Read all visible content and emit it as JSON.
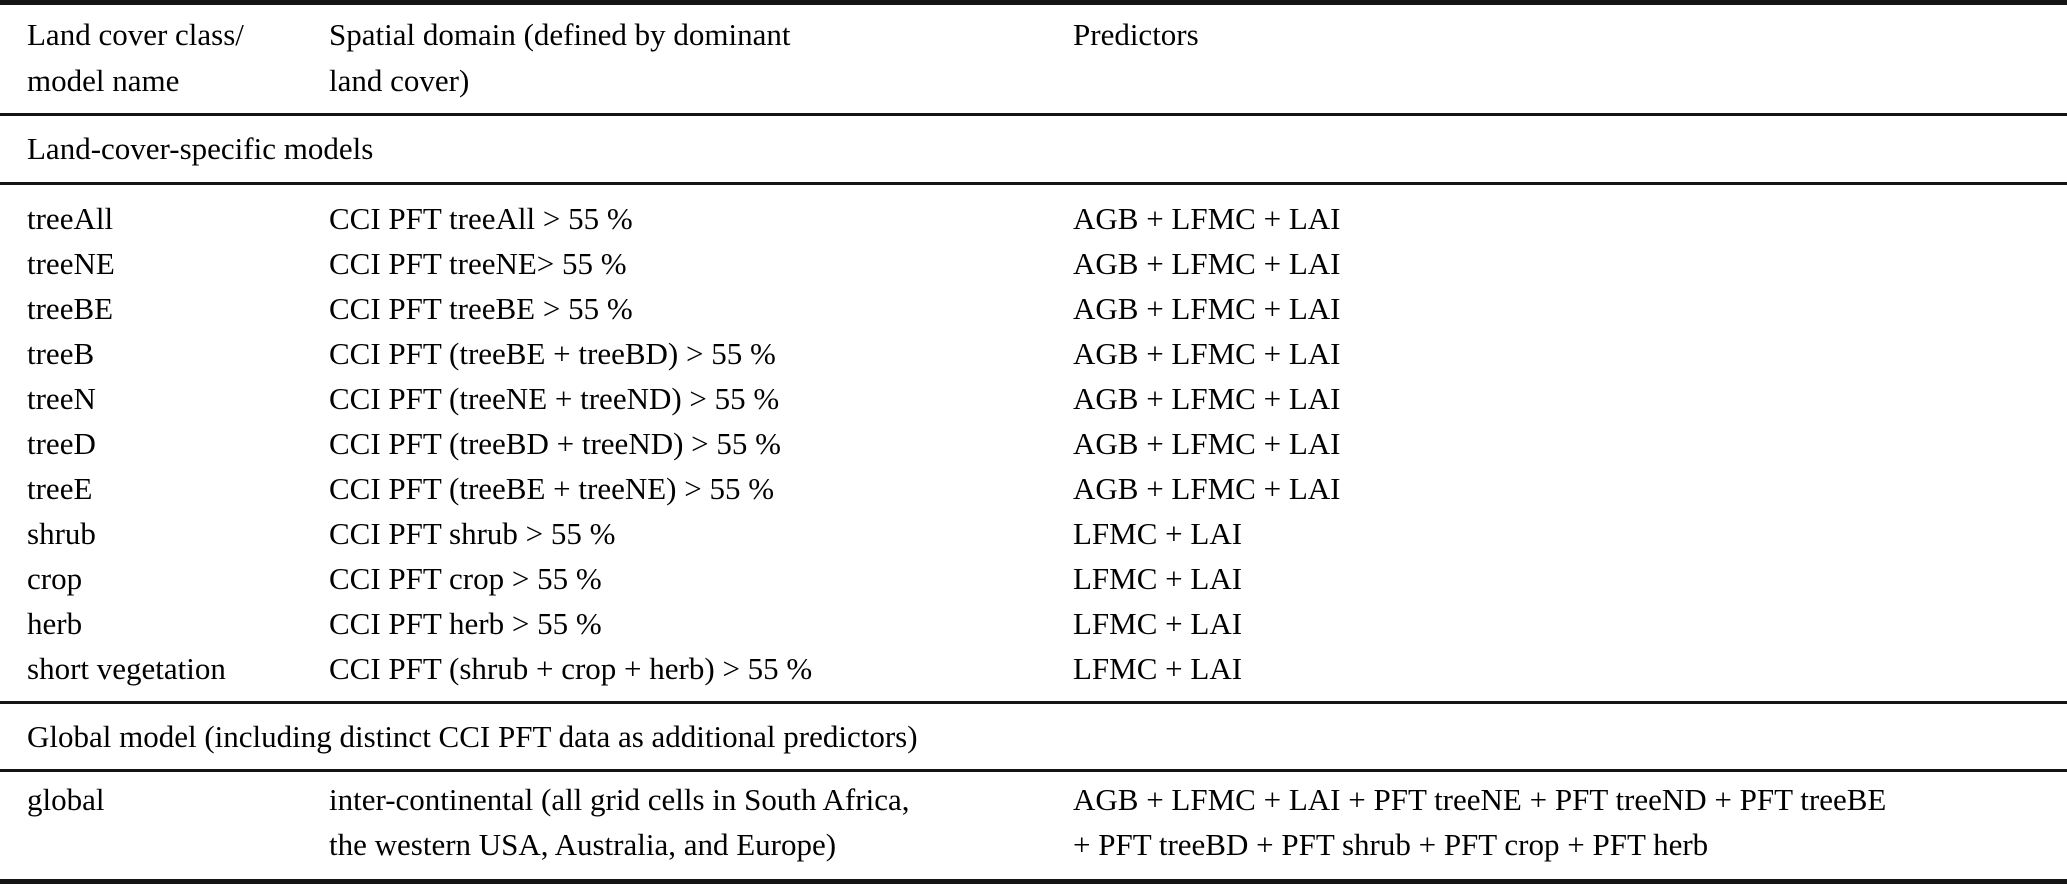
{
  "colors": {
    "background": "#ffffff",
    "text": "#000000",
    "rule": "#151515"
  },
  "header": {
    "col_model": "Land cover class/\nmodel name",
    "col_domain": "Spatial domain (defined by dominant\nland cover)",
    "col_predictors": "Predictors"
  },
  "sections": {
    "land_cover_specific": "Land-cover-specific models",
    "global": "Global model (including distinct CCI PFT data as additional predictors)"
  },
  "rows": [
    {
      "model": "treeAll",
      "domain": "CCI PFT treeAll > 55 %",
      "predictors": "AGB + LFMC + LAI"
    },
    {
      "model": "treeNE",
      "domain": "CCI PFT treeNE> 55 %",
      "predictors": "AGB + LFMC + LAI"
    },
    {
      "model": "treeBE",
      "domain": "CCI PFT treeBE > 55 %",
      "predictors": "AGB + LFMC + LAI"
    },
    {
      "model": "treeB",
      "domain": "CCI PFT (treeBE + treeBD) > 55 %",
      "predictors": "AGB + LFMC + LAI"
    },
    {
      "model": "treeN",
      "domain": "CCI PFT (treeNE + treeND) > 55 %",
      "predictors": "AGB + LFMC + LAI"
    },
    {
      "model": "treeD",
      "domain": "CCI PFT (treeBD + treeND) > 55 %",
      "predictors": "AGB + LFMC + LAI"
    },
    {
      "model": "treeE",
      "domain": "CCI PFT (treeBE + treeNE) > 55 %",
      "predictors": "AGB + LFMC + LAI"
    },
    {
      "model": "shrub",
      "domain": "CCI PFT shrub > 55 %",
      "predictors": "LFMC + LAI"
    },
    {
      "model": "crop",
      "domain": "CCI PFT crop > 55 %",
      "predictors": "LFMC + LAI"
    },
    {
      "model": "herb",
      "domain": "CCI PFT herb > 55 %",
      "predictors": "LFMC + LAI"
    },
    {
      "model": "short vegetation",
      "domain": "CCI PFT (shrub + crop + herb) > 55 %",
      "predictors": "LFMC + LAI"
    }
  ],
  "global_row": {
    "model": "global",
    "domain": "inter-continental (all grid cells in South Africa,\nthe western USA, Australia, and Europe)",
    "predictors": "AGB + LFMC + LAI + PFT treeNE + PFT treeND + PFT treeBE\n+ PFT treeBD + PFT shrub + PFT crop + PFT herb"
  }
}
